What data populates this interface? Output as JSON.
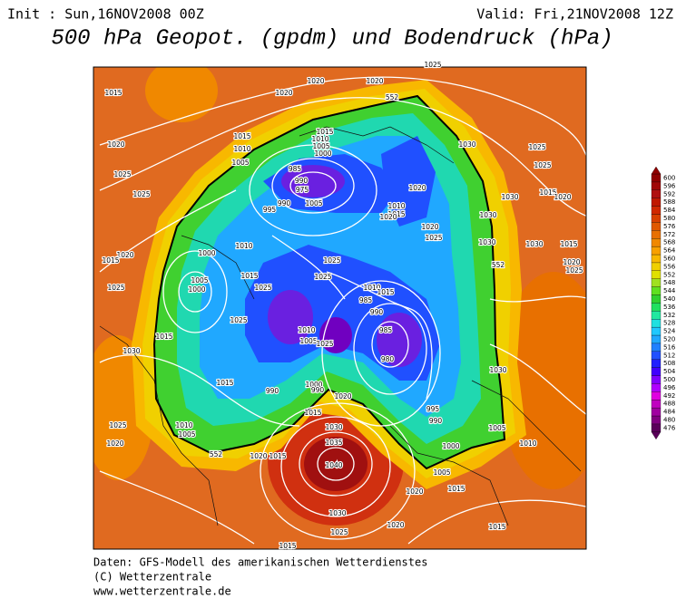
{
  "header": {
    "init": "Init : Sun,16NOV2008 00Z",
    "valid": "Valid: Fri,21NOV2008 12Z",
    "title": "500 hPa Geopot. (gpdm) und Bodendruck (hPa)"
  },
  "map": {
    "contour_labels": [
      "1025",
      "1015",
      "1020",
      "1020",
      "1020",
      "552",
      "1015",
      "1010",
      "1005",
      "1000",
      "1015",
      "1010",
      "1005",
      "1020",
      "1025",
      "1025",
      "985",
      "990",
      "975",
      "995",
      "990",
      "1005",
      "1010",
      "1015",
      "1020",
      "1020",
      "1020",
      "1025",
      "1030",
      "1025",
      "1025",
      "1030",
      "1015",
      "1020",
      "1030",
      "1030",
      "1030",
      "1015",
      "552",
      "1025",
      "1020",
      "1020",
      "1015",
      "1000",
      "1010",
      "1005",
      "1000",
      "1025",
      "1015",
      "1025",
      "1025",
      "1025",
      "1010",
      "1015",
      "990",
      "985",
      "1025",
      "1030",
      "1015",
      "1010",
      "1005",
      "1025",
      "985",
      "980",
      "1000",
      "990",
      "1020",
      "1015",
      "990",
      "1015",
      "995",
      "990",
      "1030",
      "1035",
      "1040",
      "1005",
      "1010",
      "1000",
      "1005",
      "1025",
      "1020",
      "1010",
      "1005",
      "552",
      "1020",
      "1015",
      "1020",
      "1015",
      "1030",
      "1025",
      "1020",
      "1015",
      "1015",
      "1030"
    ]
  },
  "colorbar": {
    "levels": [
      476,
      480,
      484,
      488,
      492,
      496,
      500,
      504,
      508,
      512,
      516,
      520,
      524,
      528,
      532,
      536,
      540,
      544,
      548,
      552,
      556,
      560,
      564,
      568,
      572,
      576,
      580,
      584,
      588,
      592,
      596,
      600
    ],
    "colors": [
      "#5a005a",
      "#800080",
      "#a000a0",
      "#c000c0",
      "#e000e0",
      "#b000ff",
      "#8000ff",
      "#4000ff",
      "#2020ff",
      "#2050ff",
      "#2080ff",
      "#20a8ff",
      "#20c8ff",
      "#20e0e0",
      "#20e8a0",
      "#20e060",
      "#30d030",
      "#60e020",
      "#a0e020",
      "#e0e000",
      "#f0d000",
      "#f8b800",
      "#f8a000",
      "#f08800",
      "#e87000",
      "#e05800",
      "#d84000",
      "#d02800",
      "#c01800",
      "#b01010",
      "#a00808",
      "#900000"
    ]
  },
  "footer": {
    "lines": [
      "Daten: GFS-Modell des amerikanischen Wetterdienstes",
      "(C) Wetterzentrale",
      "www.wetterzentrale.de"
    ]
  }
}
